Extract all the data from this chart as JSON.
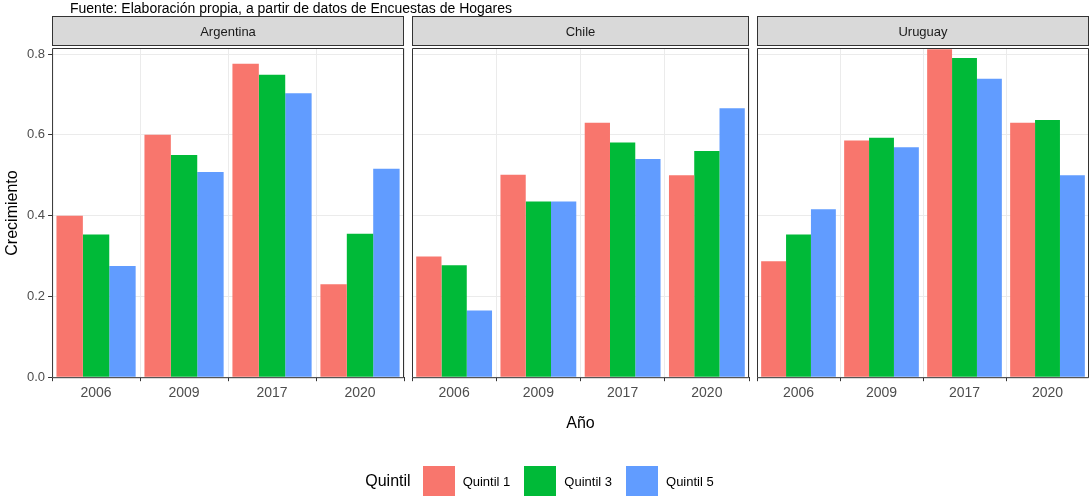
{
  "chart_data": [
    {
      "type": "bar",
      "title": "Argentina",
      "annotations": [
        "Fuente: Elaboración propia, a partir de datos de Encuestas de Hogares"
      ],
      "ylabel": "Crecimiento",
      "categories": [
        "2006",
        "2009",
        "2017",
        "2020"
      ],
      "ylim": [
        0,
        0.815
      ],
      "yticks": [
        {
          "value": 0,
          "label": "0.0"
        },
        0.2,
        0.4,
        0.6,
        0.8
      ],
      "grid": true,
      "legend": "bottom",
      "legend_title": "Quintil",
      "series": [
        {
          "name": "Quintil 1",
          "color": "#f8766d",
          "values": [
            0.4,
            0.6,
            0.776,
            0.23
          ]
        },
        {
          "name": "Quintil 3",
          "color": "#00ba38",
          "values": [
            0.353,
            0.55,
            0.749,
            0.355
          ]
        },
        {
          "name": "Quintil 5",
          "color": "#619cff",
          "values": [
            0.275,
            0.508,
            0.703,
            0.516
          ]
        }
      ]
    },
    {
      "type": "bar",
      "title": "Chile",
      "xlabel": "Año",
      "categories": [
        "2006",
        "2009",
        "2017",
        "2020"
      ],
      "ylim": [
        0,
        0.815
      ],
      "yticks": [
        0,
        0.2,
        0.4,
        0.6,
        0.8
      ],
      "grid": true,
      "tick_labels": "x",
      "series": [
        {
          "color": "#f8766d",
          "values": [
            0.299,
            0.501,
            0.63,
            0.5
          ]
        },
        {
          "color": "#00ba38",
          "values": [
            0.277,
            0.435,
            0.581,
            0.56
          ]
        },
        {
          "color": "#619cff",
          "values": [
            0.165,
            0.435,
            0.54,
            0.666
          ]
        }
      ]
    },
    {
      "type": "bar",
      "title": "Uruguay",
      "categories": [
        "2006",
        "2009",
        "2017",
        "2020"
      ],
      "ylim": [
        0,
        0.815
      ],
      "yticks": [
        0,
        0.2,
        0.4,
        0.6,
        0.8
      ],
      "grid": true,
      "tick_labels": "x",
      "series": [
        {
          "color": "#f8766d",
          "values": [
            0.287,
            0.586,
            0.812,
            0.63
          ]
        },
        {
          "color": "#00ba38",
          "values": [
            0.353,
            0.593,
            0.79,
            0.637
          ]
        },
        {
          "color": "#619cff",
          "values": [
            0.416,
            0.569,
            0.739,
            0.5
          ]
        }
      ]
    }
  ]
}
